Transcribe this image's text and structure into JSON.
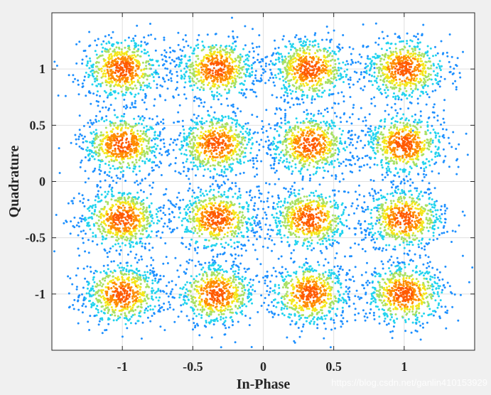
{
  "chart_data": {
    "type": "scatter",
    "title": "",
    "xlabel": "In-Phase",
    "ylabel": "Quadrature",
    "xlim": [
      -1.5,
      1.5
    ],
    "ylim": [
      -1.5,
      1.5
    ],
    "xticks": [
      -1,
      -0.5,
      0,
      0.5,
      1
    ],
    "xtick_labels": [
      "-1",
      "-0.5",
      "0",
      "0.5",
      "1"
    ],
    "yticks": [
      -1,
      -0.5,
      0,
      0.5,
      1
    ],
    "ytick_labels": [
      "-1",
      "-0.5",
      "0",
      "0.5",
      "1"
    ],
    "grid": true,
    "colormap": "density (blue → cyan → yellow → orange)",
    "colors": {
      "low": "#1e90ff",
      "mid_low": "#22d3ee",
      "mid": "#a8e063",
      "mid_high": "#f5e61a",
      "high": "#ff8c00",
      "peak": "#ff5a00"
    },
    "clusters": {
      "description": "16-QAM constellation cluster centers (I, Q)",
      "in_phase_levels": [
        -1,
        -0.33,
        0.33,
        1
      ],
      "quadrature_levels": [
        -1,
        -0.33,
        0.33,
        1
      ],
      "spread": 0.15
    }
  },
  "watermark": "https://blog.csdn.net/ganlin410153929"
}
